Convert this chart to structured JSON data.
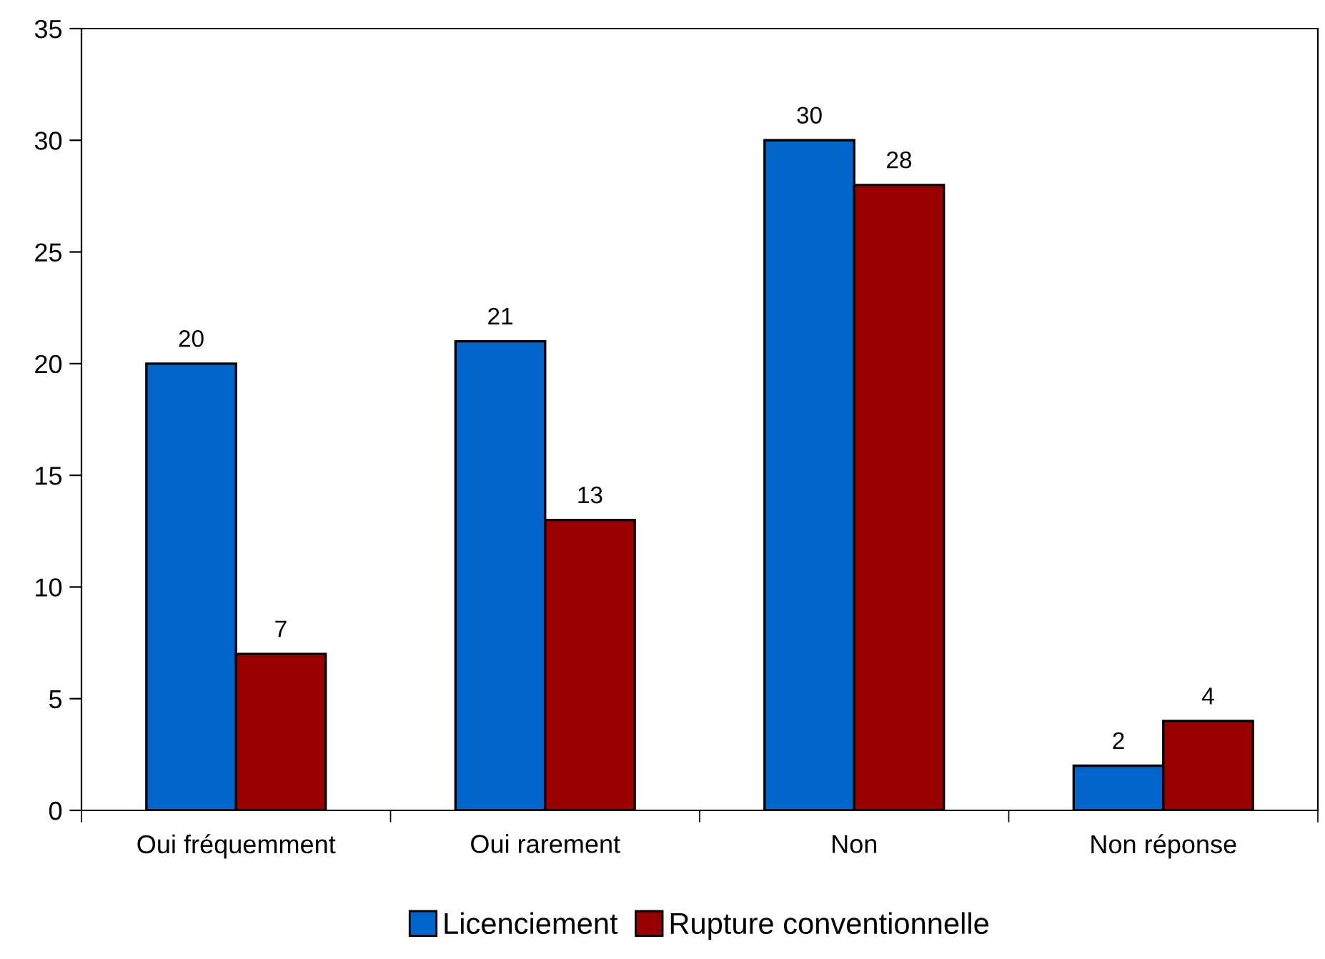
{
  "chart_data": {
    "type": "bar",
    "categories": [
      "Oui fréquemment",
      "Oui rarement",
      "Non",
      "Non réponse"
    ],
    "series": [
      {
        "name": "Licenciement",
        "color": "#0066cc",
        "values": [
          20,
          21,
          30,
          2
        ]
      },
      {
        "name": "Rupture conventionnelle",
        "color": "#990000",
        "values": [
          7,
          13,
          28,
          4
        ]
      }
    ],
    "ylim": [
      0,
      35
    ],
    "yticks": [
      0,
      5,
      10,
      15,
      20,
      25,
      30,
      35
    ],
    "data_labels": true,
    "legend": "bottom",
    "grid": false
  }
}
